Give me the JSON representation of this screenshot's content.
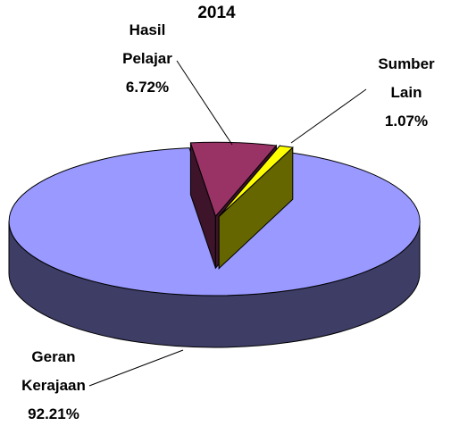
{
  "chart_data": {
    "type": "pie",
    "title": "2014",
    "categories": [
      "Hasil Pelajar",
      "Sumber Lain",
      "Geran Kerajaan"
    ],
    "values": [
      6.72,
      1.07,
      92.21
    ],
    "value_labels": [
      "6.72%",
      "1.07%",
      "92.21%"
    ],
    "colors": [
      "#993366",
      "#ffff00",
      "#9999ff"
    ],
    "three_d": true
  }
}
